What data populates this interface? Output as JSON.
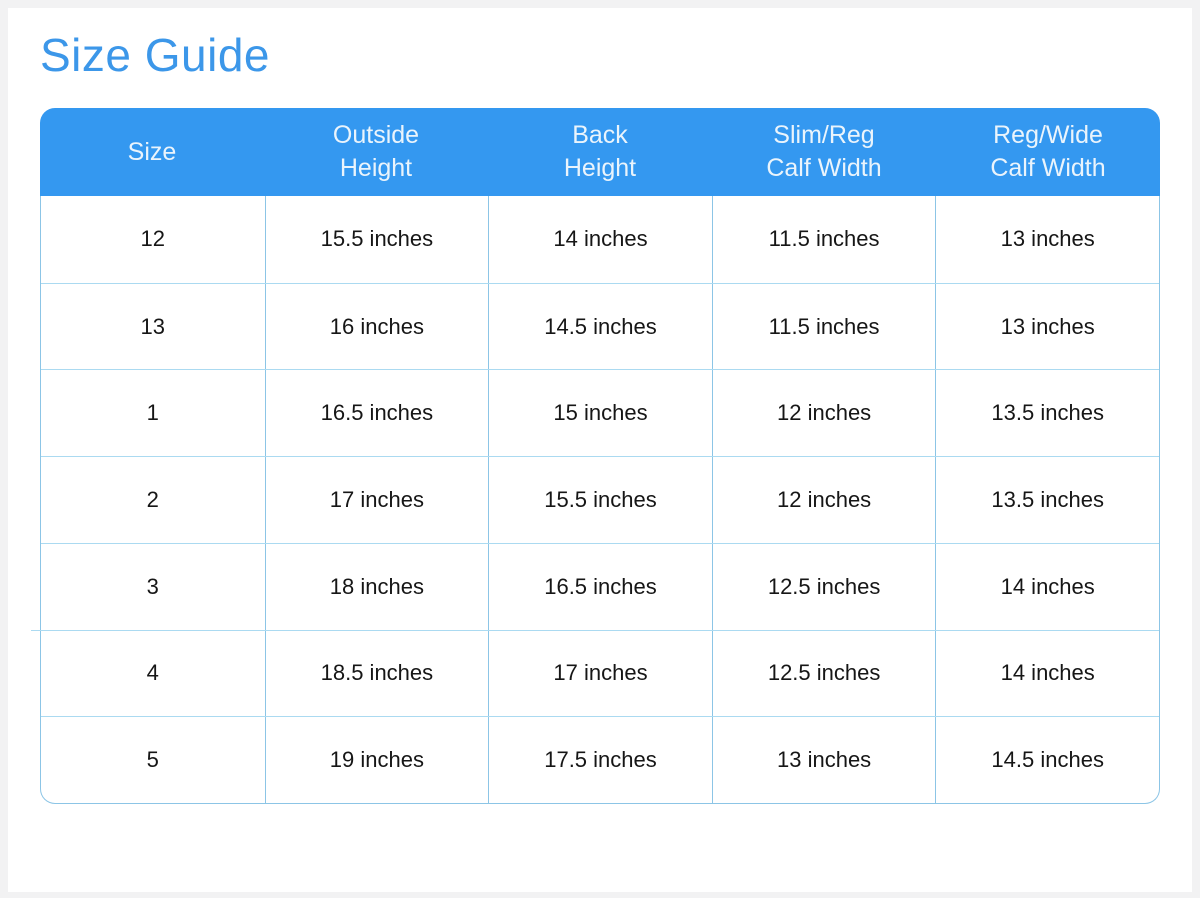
{
  "page": {
    "title": "Size Guide"
  },
  "colors": {
    "frame": "#F2F2F3",
    "surface": "#FFFFFF",
    "accent": "#3498F0",
    "title": "#3C97E9",
    "header-text": "#EAF4FC",
    "body-text": "#161616",
    "divider-v": "#8CC5E6",
    "divider-h": "#ABDAF1"
  },
  "chart_data": {
    "type": "table",
    "title": "Size Guide",
    "columns": [
      "Size",
      "Outside\nHeight",
      "Back\nHeight",
      "Slim/Reg\nCalf Width",
      "Reg/Wide\nCalf Width"
    ],
    "rows": [
      [
        "12",
        "15.5 inches",
        "14 inches",
        "11.5 inches",
        "13 inches"
      ],
      [
        "13",
        "16 inches",
        "14.5 inches",
        "11.5 inches",
        "13 inches"
      ],
      [
        "1",
        "16.5 inches",
        "15 inches",
        "12 inches",
        "13.5 inches"
      ],
      [
        "2",
        "17 inches",
        "15.5 inches",
        "12 inches",
        "13.5 inches"
      ],
      [
        "3",
        "18 inches",
        "16.5 inches",
        "12.5 inches",
        "14 inches"
      ],
      [
        "4",
        "18.5 inches",
        "17 inches",
        "12.5 inches",
        "14 inches"
      ],
      [
        "5",
        "19 inches",
        "17.5 inches",
        "13 inches",
        "14.5 inches"
      ]
    ]
  }
}
